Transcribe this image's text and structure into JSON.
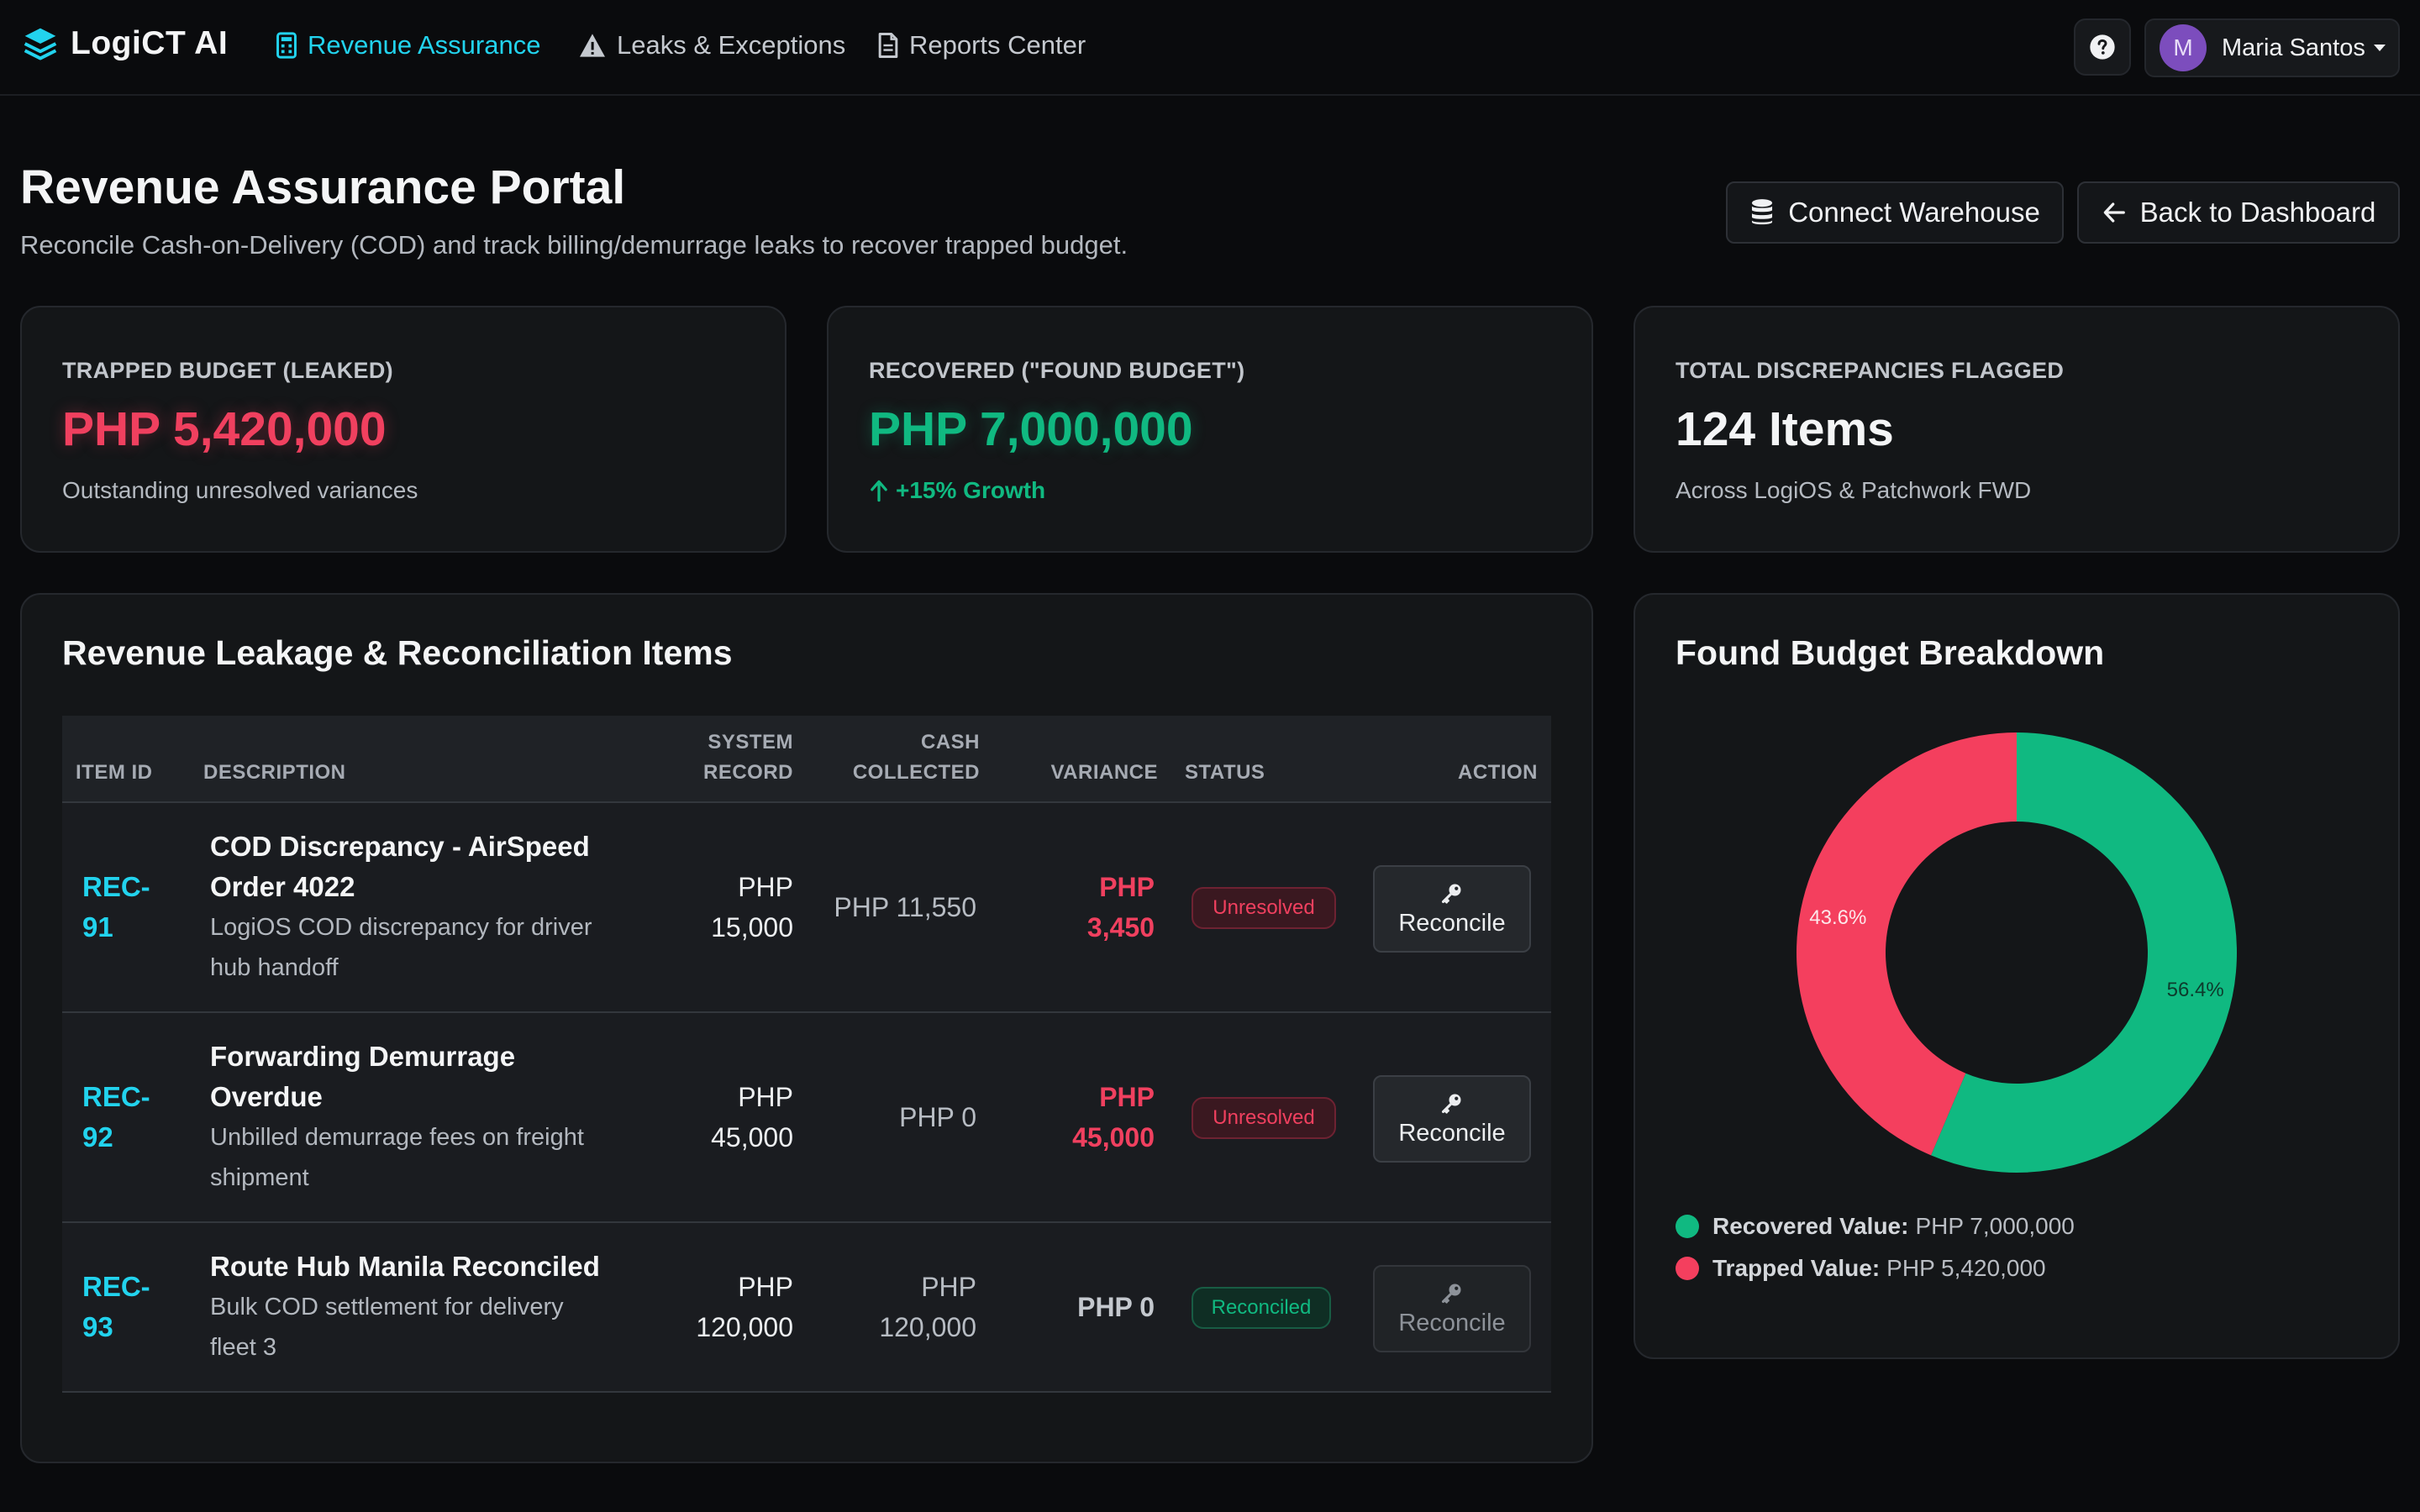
{
  "nav": {
    "brand": "LogiCT AI",
    "links": [
      "Revenue Assurance",
      "Leaks & Exceptions",
      "Reports Center"
    ],
    "user": {
      "initial": "M",
      "name": "Maria Santos"
    }
  },
  "header": {
    "title": "Revenue Assurance Portal",
    "subtitle": "Reconcile Cash-on-Delivery (COD) and track billing/demurrage leaks to recover trapped budget.",
    "connect_label": "Connect Warehouse",
    "back_label": "Back to Dashboard"
  },
  "kpis": [
    {
      "label": "TRAPPED BUDGET (LEAKED)",
      "value": "PHP 5,420,000",
      "note": "Outstanding unresolved variances"
    },
    {
      "label": "RECOVERED (\"FOUND BUDGET\")",
      "value": "PHP 7,000,000",
      "note": "+15% Growth"
    },
    {
      "label": "TOTAL DISCREPANCIES FLAGGED",
      "value": "124 Items",
      "note": "Across LogiOS & Patchwork FWD"
    }
  ],
  "table": {
    "title": "Revenue Leakage & Reconciliation Items",
    "headers": {
      "item_id": "ITEM ID",
      "description": "DESCRIPTION",
      "system_1": "SYSTEM",
      "system_2": "RECORD",
      "cash_1": "CASH",
      "cash_2": "COLLECTED",
      "variance": "VARIANCE",
      "status": "STATUS",
      "action": "ACTION"
    },
    "rows": [
      {
        "id_1": "REC-",
        "id_2": "91",
        "title_1": "COD Discrepancy - AirSpeed",
        "title_2": "Order 4022",
        "desc_1": "LogiOS COD discrepancy for driver",
        "desc_2": "hub handoff",
        "sys_1": "PHP",
        "sys_2": "15,000",
        "cash_1": "PHP 11,550",
        "cash_2": "",
        "var_1": "PHP",
        "var_2": "3,450",
        "status": "Unresolved",
        "action": "Reconcile"
      },
      {
        "id_1": "REC-",
        "id_2": "92",
        "title_1": "Forwarding Demurrage",
        "title_2": "Overdue",
        "desc_1": "Unbilled demurrage fees on freight",
        "desc_2": "shipment",
        "sys_1": "PHP",
        "sys_2": "45,000",
        "cash_1": "PHP 0",
        "cash_2": "",
        "var_1": "PHP",
        "var_2": "45,000",
        "status": "Unresolved",
        "action": "Reconcile"
      },
      {
        "id_1": "REC-",
        "id_2": "93",
        "title_1": "Route Hub Manila Reconciled",
        "title_2": "",
        "desc_1": "Bulk COD settlement for delivery",
        "desc_2": "fleet 3",
        "sys_1": "PHP",
        "sys_2": "120,000",
        "cash_1": "PHP",
        "cash_2": "120,000",
        "var_1": "PHP 0",
        "var_2": "",
        "status": "Reconciled",
        "action": "Reconcile"
      }
    ]
  },
  "chart_data": {
    "type": "pie",
    "title": "Found Budget Breakdown",
    "donut": true,
    "categories": [
      "Recovered Value",
      "Trapped Value"
    ],
    "values": [
      7000000,
      5420000
    ],
    "percent_labels": [
      "56.4%",
      "43.6%"
    ],
    "colors": [
      "#10b981",
      "#f43f5e"
    ],
    "legend": [
      {
        "name": "Recovered Value:",
        "value": "PHP 7,000,000"
      },
      {
        "name": "Trapped Value:",
        "value": "PHP 5,420,000"
      }
    ],
    "legend_position": "bottom"
  },
  "colors": {
    "accent": "#22d3ee",
    "danger": "#f0405f",
    "success": "#10b981",
    "background": "#0a0b0d"
  },
  "icons": [
    "stack-logo-icon",
    "calculator-icon",
    "warning-icon",
    "document-icon",
    "question-icon",
    "database-icon",
    "arrow-left-icon",
    "arrow-up-icon",
    "key-icon"
  ]
}
